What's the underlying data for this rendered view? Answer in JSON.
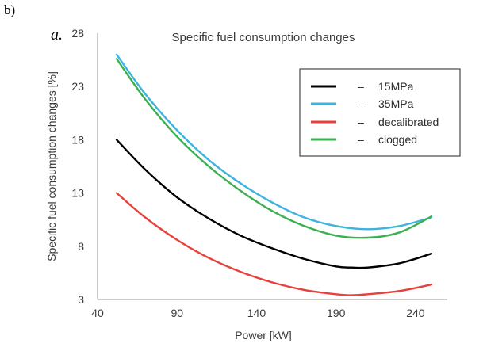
{
  "panel_label": "b)",
  "chart_label": "a.",
  "chart_data": {
    "type": "line",
    "title": "Specific fuel consumption changes",
    "xlabel": "Power [kW]",
    "ylabel": "Specific  fuel consumption changes [%]",
    "xlim": [
      40,
      260
    ],
    "ylim": [
      3,
      28
    ],
    "xticks": [
      40,
      90,
      140,
      190,
      240
    ],
    "yticks": [
      3,
      8,
      13,
      18,
      23,
      28
    ],
    "grid": false,
    "legend_position": "top-right",
    "series": [
      {
        "name": "15MPa",
        "color": "#000000",
        "x": [
          52,
          70,
          90,
          110,
          130,
          150,
          170,
          190,
          200,
          210,
          230,
          250
        ],
        "y": [
          18.0,
          15.2,
          12.6,
          10.6,
          9.0,
          7.8,
          6.8,
          6.1,
          6.0,
          6.0,
          6.4,
          7.3
        ]
      },
      {
        "name": "35MPa",
        "color": "#3db3e0",
        "x": [
          52,
          70,
          90,
          110,
          130,
          150,
          170,
          190,
          210,
          230,
          250
        ],
        "y": [
          26.0,
          22.3,
          18.9,
          16.1,
          13.9,
          12.1,
          10.7,
          9.9,
          9.6,
          9.9,
          10.7
        ]
      },
      {
        "name": "decalibrated",
        "color": "#e8413c",
        "x": [
          52,
          70,
          90,
          110,
          130,
          150,
          170,
          190,
          200,
          210,
          230,
          250
        ],
        "y": [
          13.0,
          10.7,
          8.6,
          6.9,
          5.6,
          4.6,
          3.9,
          3.5,
          3.4,
          3.5,
          3.8,
          4.4
        ]
      },
      {
        "name": "clogged",
        "color": "#3cb050",
        "x": [
          52,
          70,
          90,
          110,
          130,
          150,
          170,
          190,
          210,
          230,
          250
        ],
        "y": [
          25.6,
          21.8,
          18.3,
          15.5,
          13.2,
          11.3,
          9.9,
          9.0,
          8.8,
          9.3,
          10.8
        ]
      }
    ],
    "legend": [
      {
        "name": "15MPa",
        "dash": "–",
        "color": "#000000"
      },
      {
        "name": "35MPa",
        "dash": "–",
        "color": "#3db3e0"
      },
      {
        "name": "decalibrated",
        "dash": "–",
        "color": "#e8413c"
      },
      {
        "name": "clogged",
        "dash": "–",
        "color": "#3cb050"
      }
    ]
  }
}
